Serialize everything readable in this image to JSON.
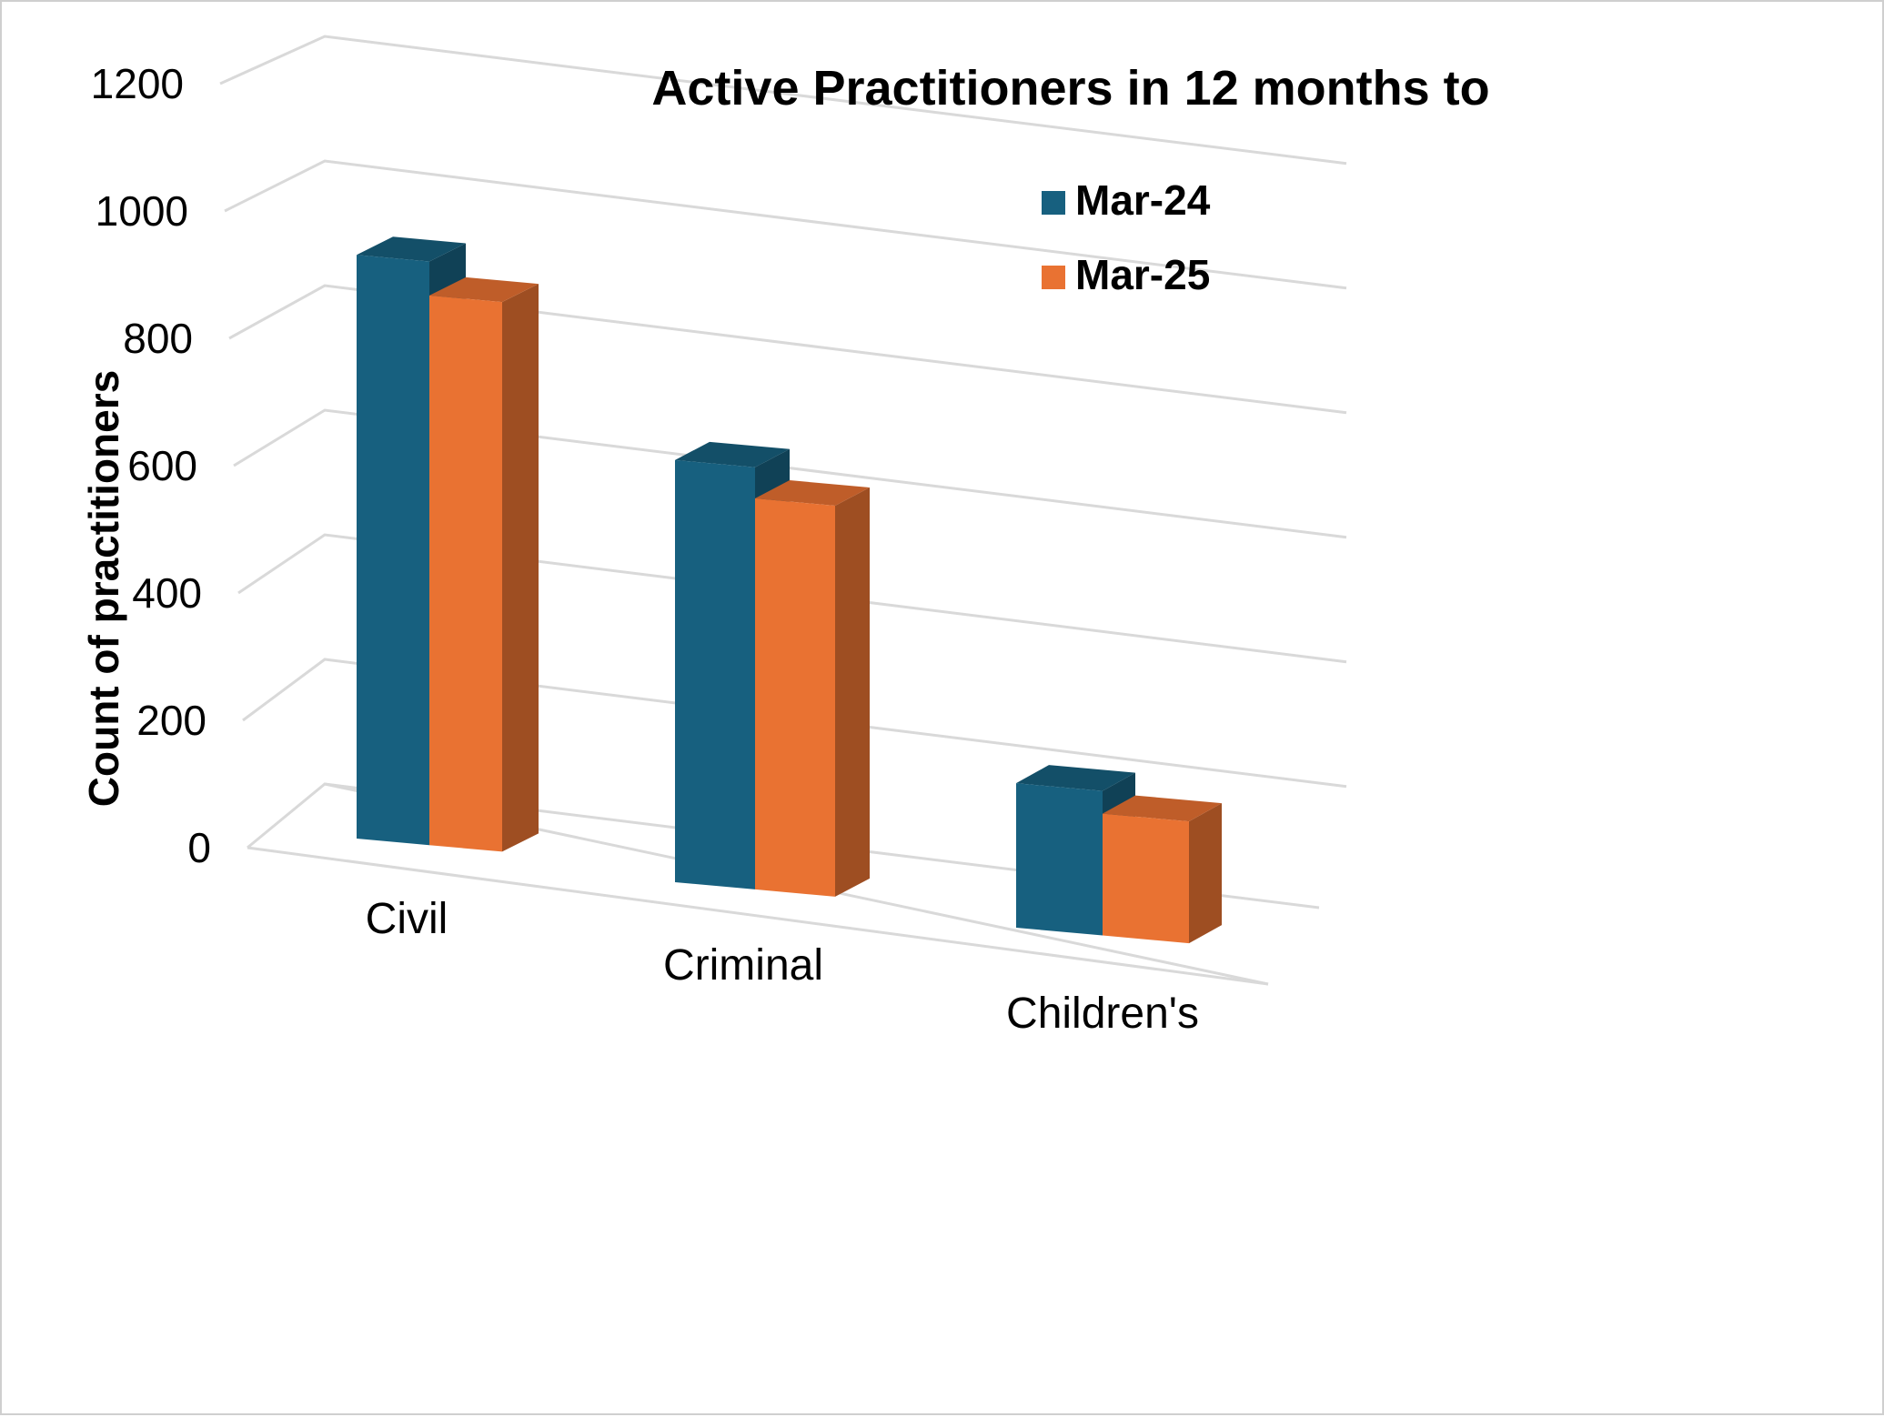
{
  "chart_data": {
    "type": "bar",
    "title": "Active Practitioners in 12 months to",
    "xlabel": "",
    "ylabel": "Count of practitioners",
    "categories": [
      "Civil",
      "Criminal",
      "Children's"
    ],
    "series": [
      {
        "name": "Mar-24",
        "values": [
          1030,
          745,
          255
        ],
        "color": "#17607f"
      },
      {
        "name": "Mar-25",
        "values": [
          970,
          690,
          215
        ],
        "color": "#e97232"
      }
    ],
    "ylim": [
      0,
      1200
    ],
    "yticks": [
      0,
      200,
      400,
      600,
      800,
      1000,
      1200
    ],
    "grid": true,
    "legend_position": "top-right",
    "style": "3d-clustered-column"
  }
}
